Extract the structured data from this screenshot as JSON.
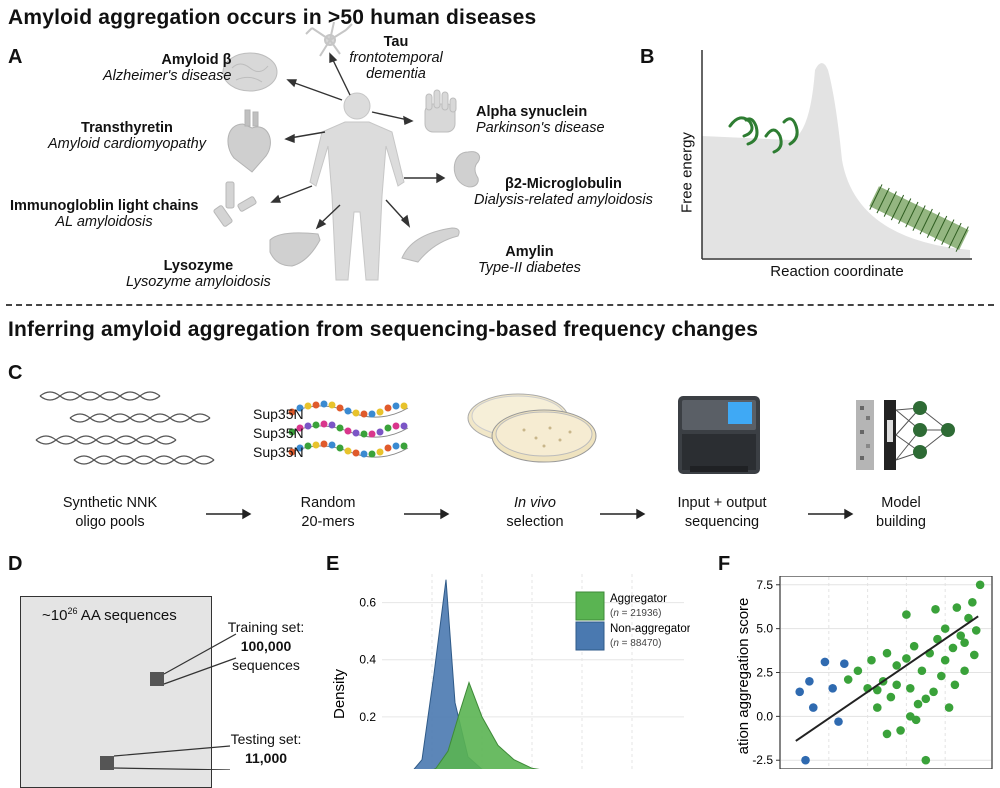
{
  "title1": "Amyloid aggregation occurs in >50 human diseases",
  "panelA": {
    "label": "A",
    "diseases": [
      {
        "name": "Amyloid β",
        "disease": "Alzheimer's disease"
      },
      {
        "name": "Tau",
        "disease_line1": "frontotemporal",
        "disease_line2": "dementia"
      },
      {
        "name": "Alpha synuclein",
        "disease": "Parkinson's disease"
      },
      {
        "name": "Transthyretin",
        "disease": "Amyloid cardiomyopathy"
      },
      {
        "name": "β2-Microglobulin",
        "disease": "Dialysis-related amyloidosis"
      },
      {
        "name": "Immunogloblin light chains",
        "disease": "AL amyloidosis"
      },
      {
        "name": "Lysozyme",
        "disease": "Lysozyme amyloidosis"
      },
      {
        "name": "Amylin",
        "disease": "Type-II diabetes"
      }
    ]
  },
  "panelB": {
    "label": "B",
    "ylabel": "Free energy",
    "xlabel": "Reaction coordinate"
  },
  "title2": "Inferring amyloid aggregation from sequencing-based frequency changes",
  "panelC": {
    "label": "C",
    "sup": [
      "Sup35N",
      "Sup35N",
      "Sup35N"
    ],
    "steps": [
      {
        "line1": "Synthetic NNK",
        "line2": "oligo pools"
      },
      {
        "line1": "Random",
        "line2": "20-mers"
      },
      {
        "line1": "In vivo",
        "line2": "selection"
      },
      {
        "line1": "Input + output",
        "line2": "sequencing"
      },
      {
        "line1": "Model",
        "line2": "building"
      }
    ]
  },
  "panelD": {
    "label": "D",
    "box_prefix": "~10",
    "box_exp": "26",
    "box_suffix": " AA sequences",
    "training_label": "Training set:",
    "training_count": "100,000",
    "training_unit": "sequences",
    "testing_label": "Testing set:",
    "testing_count": "11,000"
  },
  "chart_data": [
    {
      "panel": "E",
      "type": "area",
      "ylabel": "Density",
      "yticks": [
        "0.6",
        "0.4",
        "0.2"
      ],
      "ylim": [
        0,
        0.7
      ],
      "legend_position": "top-right",
      "series": [
        {
          "name": "Aggregator",
          "n_label": "n",
          "n_value": " = 21936",
          "color": "#5ab452",
          "x": [
            0,
            1,
            2,
            3,
            4,
            5,
            6,
            7,
            8,
            9,
            10
          ],
          "values": [
            0,
            0.02,
            0.08,
            0.22,
            0.32,
            0.2,
            0.1,
            0.05,
            0.02,
            0.01,
            0
          ]
        },
        {
          "name": "Non-aggregator",
          "n_label": "n",
          "n_value": " = 88470",
          "color": "#4a79b0",
          "x": [
            0,
            1,
            2,
            3,
            4,
            5,
            6,
            7,
            8,
            9,
            10
          ],
          "values": [
            0,
            0.05,
            0.35,
            0.68,
            0.25,
            0.06,
            0.01,
            0,
            0,
            0,
            0
          ]
        }
      ]
    },
    {
      "panel": "F",
      "type": "scatter",
      "ylabel": "ation aggregation score",
      "yticks": [
        "7.5",
        "5.0",
        "2.5",
        "0.0",
        "-2.5"
      ],
      "ylim": [
        -3,
        8
      ],
      "series": [
        {
          "name": "aggregator",
          "color": "#3aa23a",
          "points": [
            [
              0.3,
              2.1
            ],
            [
              0.35,
              2.6
            ],
            [
              0.4,
              1.6
            ],
            [
              0.42,
              3.2
            ],
            [
              0.45,
              0.5
            ],
            [
              0.48,
              2.0
            ],
            [
              0.5,
              3.6
            ],
            [
              0.52,
              1.1
            ],
            [
              0.55,
              2.9
            ],
            [
              0.57,
              -0.8
            ],
            [
              0.6,
              3.3
            ],
            [
              0.62,
              1.6
            ],
            [
              0.64,
              4.0
            ],
            [
              0.66,
              0.7
            ],
            [
              0.68,
              2.6
            ],
            [
              0.7,
              -2.5
            ],
            [
              0.72,
              3.6
            ],
            [
              0.74,
              1.4
            ],
            [
              0.76,
              4.4
            ],
            [
              0.78,
              2.3
            ],
            [
              0.8,
              5.0
            ],
            [
              0.82,
              0.5
            ],
            [
              0.84,
              3.9
            ],
            [
              0.86,
              6.2
            ],
            [
              0.88,
              4.6
            ],
            [
              0.9,
              2.6
            ],
            [
              0.92,
              5.6
            ],
            [
              0.94,
              6.5
            ],
            [
              0.96,
              4.9
            ],
            [
              0.98,
              7.5
            ],
            [
              0.6,
              5.8
            ],
            [
              0.5,
              -1.0
            ],
            [
              0.45,
              1.5
            ],
            [
              0.65,
              -0.2
            ],
            [
              0.7,
              1.0
            ],
            [
              0.8,
              3.2
            ],
            [
              0.85,
              1.8
            ],
            [
              0.9,
              4.2
            ],
            [
              0.95,
              3.5
            ],
            [
              0.55,
              1.8
            ],
            [
              0.75,
              6.1
            ],
            [
              0.62,
              0.0
            ]
          ]
        },
        {
          "name": "non-aggregator",
          "color": "#2f6ab0",
          "points": [
            [
              0.05,
              1.4
            ],
            [
              0.1,
              2.0
            ],
            [
              0.12,
              0.5
            ],
            [
              0.18,
              3.1
            ],
            [
              0.22,
              1.6
            ],
            [
              0.25,
              -0.3
            ],
            [
              0.08,
              -2.5
            ],
            [
              0.28,
              3.0
            ]
          ]
        }
      ],
      "fit_line": [
        [
          0,
          -1.6
        ],
        [
          1,
          5.9
        ]
      ]
    }
  ]
}
